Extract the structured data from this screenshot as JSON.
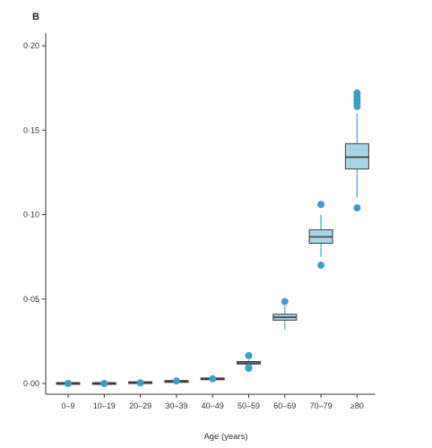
{
  "chart_data": {
    "type": "box",
    "panel_label": "B",
    "xlabel": "Age (years)",
    "ylabel": "",
    "ylim": [
      0,
      0.21
    ],
    "yticks": [
      0,
      0.05,
      0.1,
      0.15,
      0.2
    ],
    "ytick_labels": [
      "0·00",
      "0·05",
      "0·10",
      "0·15",
      "0·20"
    ],
    "categories": [
      "0–9",
      "10–19",
      "20–29",
      "30–39",
      "40–49",
      "50–59",
      "60–69",
      "70–79",
      "≥80"
    ],
    "boxes": [
      {
        "category": "0–9",
        "whisker_low": 0.0,
        "q1": 0.0,
        "median": 0.0,
        "q3": 0.0,
        "whisker_high": 0.0,
        "outliers": [
          0.0
        ]
      },
      {
        "category": "10–19",
        "whisker_low": 0.0,
        "q1": 0.0,
        "median": 0.0,
        "q3": 0.0,
        "whisker_high": 0.0,
        "outliers": [
          0.0
        ]
      },
      {
        "category": "20–29",
        "whisker_low": 0.0004,
        "q1": 0.0004,
        "median": 0.0005,
        "q3": 0.0006,
        "whisker_high": 0.0006,
        "outliers": [
          0.0004
        ]
      },
      {
        "category": "30–39",
        "whisker_low": 0.001,
        "q1": 0.0011,
        "median": 0.0012,
        "q3": 0.0013,
        "whisker_high": 0.0014,
        "outliers": [
          0.0015
        ]
      },
      {
        "category": "40–49",
        "whisker_low": 0.0025,
        "q1": 0.0026,
        "median": 0.0027,
        "q3": 0.0029,
        "whisker_high": 0.003,
        "outliers": [
          0.0028
        ]
      },
      {
        "category": "50–59",
        "whisker_low": 0.0105,
        "q1": 0.0115,
        "median": 0.0122,
        "q3": 0.013,
        "whisker_high": 0.014,
        "outliers": [
          0.009,
          0.0095,
          0.0165
        ]
      },
      {
        "category": "60–69",
        "whisker_low": 0.032,
        "q1": 0.0375,
        "median": 0.0392,
        "q3": 0.041,
        "whisker_high": 0.046,
        "outliers": [
          0.0485
        ]
      },
      {
        "category": "70–79",
        "whisker_low": 0.075,
        "q1": 0.083,
        "median": 0.0868,
        "q3": 0.091,
        "whisker_high": 0.1,
        "outliers": [
          0.07,
          0.106
        ]
      },
      {
        "category": "≥80",
        "whisker_low": 0.11,
        "q1": 0.127,
        "median": 0.134,
        "q3": 0.142,
        "whisker_high": 0.16,
        "outliers": [
          0.104,
          0.164,
          0.166,
          0.168,
          0.17,
          0.172
        ]
      }
    ],
    "grid": false,
    "legend": "none",
    "colors": {
      "box_fill": "#a9d4e3",
      "box_edge": "#3c3c3c",
      "median": "#3c3c3c",
      "whisker": "#4aa3c4",
      "outlier": "#3d9dc3",
      "axis": "#333333"
    }
  }
}
